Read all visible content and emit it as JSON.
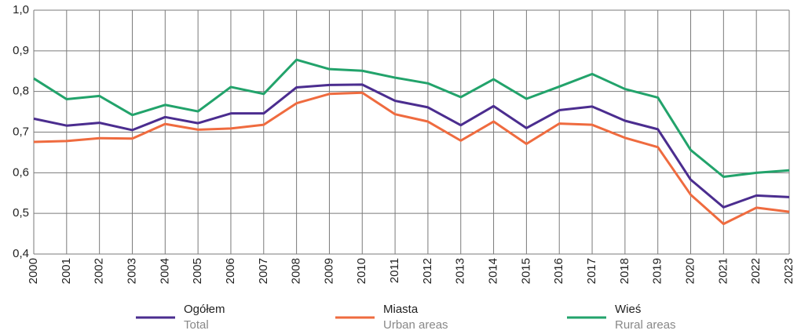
{
  "chart_data": {
    "type": "line",
    "categories": [
      "2000",
      "2001",
      "2002",
      "2003",
      "2004",
      "2005",
      "2006",
      "2007",
      "2008",
      "2009",
      "2010",
      "2011",
      "2012",
      "2013",
      "2014",
      "2015",
      "2016",
      "2017",
      "2018",
      "2019",
      "2020",
      "2021",
      "2022",
      "2023"
    ],
    "series": [
      {
        "name": "Ogółem",
        "name_en": "Total",
        "color": "#4b2d8f",
        "values": [
          0.733,
          0.716,
          0.723,
          0.705,
          0.737,
          0.722,
          0.746,
          0.746,
          0.81,
          0.816,
          0.817,
          0.777,
          0.761,
          0.717,
          0.764,
          0.71,
          0.754,
          0.763,
          0.728,
          0.707,
          0.583,
          0.515,
          0.544,
          0.54
        ]
      },
      {
        "name": "Miasta",
        "name_en": "Urban areas",
        "color": "#ef6b3f",
        "values": [
          0.676,
          0.678,
          0.685,
          0.684,
          0.72,
          0.706,
          0.709,
          0.718,
          0.771,
          0.794,
          0.797,
          0.744,
          0.726,
          0.679,
          0.726,
          0.671,
          0.721,
          0.718,
          0.686,
          0.663,
          0.546,
          0.474,
          0.514,
          0.504
        ]
      },
      {
        "name": "Wieś",
        "name_en": "Rural areas",
        "color": "#22a36b",
        "values": [
          0.832,
          0.781,
          0.789,
          0.742,
          0.767,
          0.751,
          0.811,
          0.794,
          0.878,
          0.855,
          0.851,
          0.834,
          0.82,
          0.786,
          0.83,
          0.782,
          0.812,
          0.843,
          0.806,
          0.785,
          0.656,
          0.59,
          0.6,
          0.606
        ]
      }
    ],
    "ylim": [
      0.4,
      1.0
    ],
    "yticks": [
      {
        "value": 0.4,
        "label": "0,4"
      },
      {
        "value": 0.5,
        "label": "0,5"
      },
      {
        "value": 0.6,
        "label": "0,6"
      },
      {
        "value": 0.7,
        "label": "0,7"
      },
      {
        "value": 0.8,
        "label": "0,8"
      },
      {
        "value": 0.9,
        "label": "0,9"
      },
      {
        "value": 1.0,
        "label": "1,0"
      }
    ],
    "grid": true,
    "legend": "bottom"
  }
}
